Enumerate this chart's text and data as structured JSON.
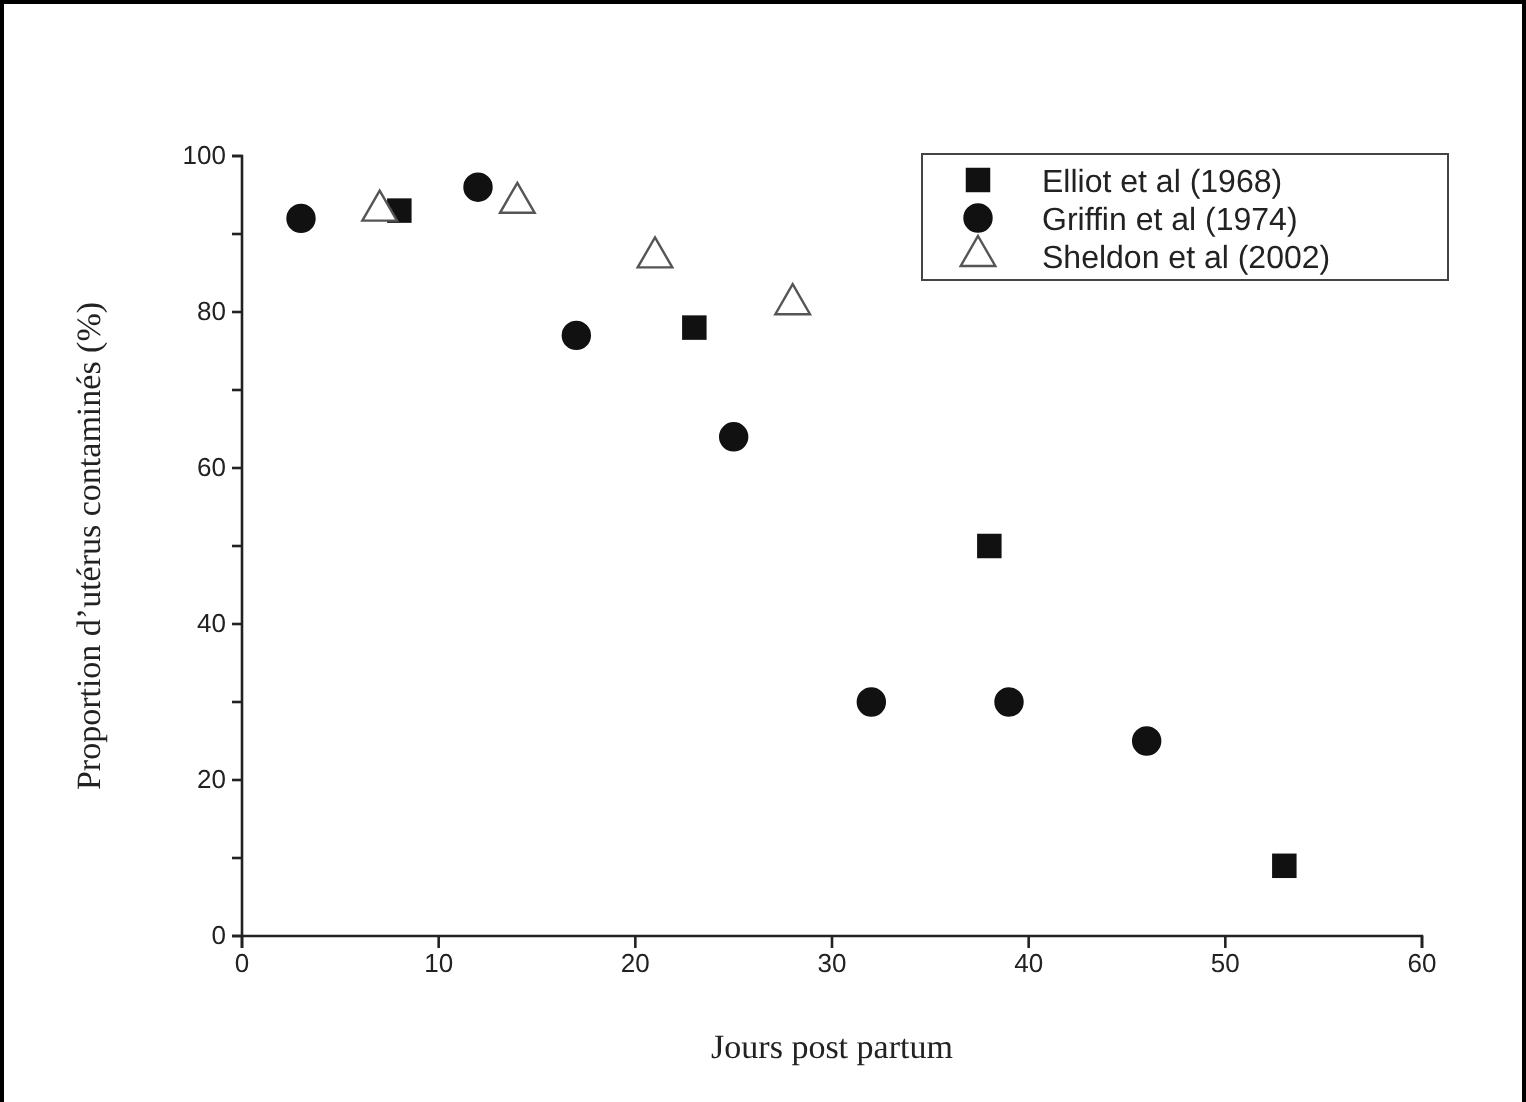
{
  "chart_data": {
    "type": "scatter",
    "xlabel": "Jours post partum",
    "ylabel": "Proportion d’utérus contaminés (%)",
    "xlim": [
      0,
      60
    ],
    "xticks": [
      0,
      10,
      20,
      30,
      40,
      50,
      60
    ],
    "ylim": [
      0,
      100
    ],
    "yticks": [
      0,
      {
        "value": 10,
        "label": null
      },
      20,
      {
        "value": 30,
        "label": null
      },
      40,
      {
        "value": 50,
        "label": null
      },
      60,
      {
        "value": 70,
        "label": null
      },
      80,
      {
        "value": 90,
        "label": null
      },
      100
    ],
    "legend": "top right",
    "series": [
      {
        "name": "Elliot et al (1968)",
        "color": "#111111",
        "marker": "square",
        "x": [
          8,
          23,
          38,
          53
        ],
        "values": [
          93,
          78,
          50,
          9
        ]
      },
      {
        "name": "Griffin et al (1974)",
        "color": "#111111",
        "marker": "circle",
        "x": [
          3,
          12,
          17,
          25,
          32,
          39,
          46
        ],
        "values": [
          92,
          96,
          77,
          64,
          30,
          30,
          25
        ]
      },
      {
        "name": "Sheldon et al (2002)",
        "color": "#555555",
        "marker": "triangle",
        "x": [
          7,
          14,
          21,
          28
        ],
        "values": [
          93,
          94,
          87,
          81
        ]
      }
    ]
  }
}
